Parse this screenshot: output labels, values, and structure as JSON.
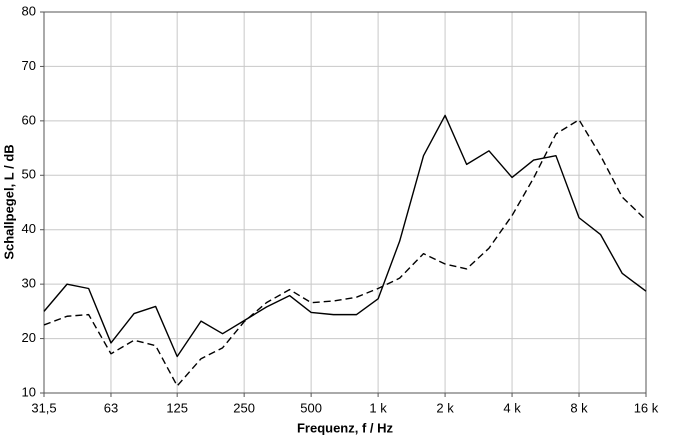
{
  "chart_data": {
    "type": "line",
    "xlabel": "Frequenz, f / Hz",
    "ylabel": "Schallpegel, L / dB",
    "log_x": true,
    "grid": true,
    "x": [
      31.5,
      40,
      50,
      63,
      80,
      100,
      125,
      160,
      200,
      250,
      315,
      400,
      500,
      630,
      800,
      1000,
      1250,
      1600,
      2000,
      2500,
      3150,
      4000,
      5000,
      6300,
      8000,
      10000,
      12500,
      16000
    ],
    "series": [
      {
        "color": "#000000",
        "line_style": "solid",
        "values": [
          25,
          30,
          29.2,
          19.2,
          24.6,
          25.9,
          16.7,
          23.2,
          20.9,
          23.3,
          25.8,
          27.9,
          24.8,
          24.4,
          24.4,
          27.3,
          37.9,
          53.6,
          61,
          52,
          54.5,
          49.6,
          52.8,
          53.6,
          42.2,
          39.1,
          32,
          28.7
        ]
      },
      {
        "color": "#000000",
        "line_style": "dashed",
        "values": [
          22.5,
          24.1,
          24.4,
          17.2,
          19.7,
          18.7,
          11.3,
          16.3,
          18.3,
          23.1,
          26.6,
          29,
          26.6,
          26.9,
          27.6,
          29.2,
          31.1,
          35.6,
          33.7,
          32.8,
          36.6,
          42.6,
          49.5,
          57.6,
          60.2,
          53.6,
          46,
          41.8
        ]
      }
    ],
    "xlim": [
      31.5,
      16000
    ],
    "xticks": [
      {
        "value": 31.5,
        "label": "31,5"
      },
      63,
      125,
      250,
      500,
      {
        "value": 1000,
        "label": "1 k"
      },
      {
        "value": 2000,
        "label": "2 k"
      },
      {
        "value": 4000,
        "label": "4 k"
      },
      {
        "value": 8000,
        "label": "8 k"
      },
      {
        "value": 16000,
        "label": "16 k"
      }
    ],
    "ylim": [
      10,
      80
    ],
    "yticks": [
      10,
      20,
      30,
      40,
      50,
      60,
      70,
      80
    ]
  }
}
